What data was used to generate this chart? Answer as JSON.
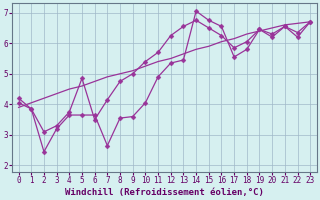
{
  "xlabel": "Windchill (Refroidissement éolien,°C)",
  "bg_color": "#d6f0f0",
  "line_color": "#993399",
  "grid_color": "#a0b8c8",
  "spine_color": "#667788",
  "xlim": [
    -0.5,
    23.5
  ],
  "ylim": [
    1.8,
    7.3
  ],
  "xticks": [
    0,
    1,
    2,
    3,
    4,
    5,
    6,
    7,
    8,
    9,
    10,
    11,
    12,
    13,
    14,
    15,
    16,
    17,
    18,
    19,
    20,
    21,
    22,
    23
  ],
  "yticks": [
    2,
    3,
    4,
    5,
    6,
    7
  ],
  "line1_x": [
    0,
    1,
    2,
    3,
    4,
    5,
    6,
    7,
    8,
    9,
    10,
    11,
    12,
    13,
    14,
    15,
    16,
    17,
    18,
    19,
    20,
    21,
    22,
    23
  ],
  "line1_y": [
    4.2,
    3.85,
    2.45,
    3.2,
    3.65,
    3.65,
    3.65,
    2.65,
    3.55,
    3.6,
    4.05,
    4.9,
    5.35,
    5.45,
    7.05,
    6.75,
    6.55,
    5.55,
    5.8,
    6.45,
    6.3,
    6.55,
    6.2,
    6.7
  ],
  "line2_x": [
    0,
    1,
    2,
    3,
    4,
    5,
    6,
    7,
    8,
    9,
    10,
    11,
    12,
    13,
    14,
    15,
    16,
    17,
    18,
    19,
    20,
    21,
    22,
    23
  ],
  "line2_y": [
    4.05,
    3.85,
    3.1,
    3.3,
    3.75,
    4.85,
    3.5,
    4.15,
    4.75,
    5.0,
    5.4,
    5.7,
    6.25,
    6.55,
    6.75,
    6.5,
    6.25,
    5.85,
    6.05,
    6.45,
    6.2,
    6.55,
    6.35,
    6.7
  ],
  "line3_x": [
    0,
    1,
    2,
    3,
    4,
    5,
    6,
    7,
    8,
    9,
    10,
    11,
    12,
    13,
    14,
    15,
    16,
    17,
    18,
    19,
    20,
    21,
    22,
    23
  ],
  "line3_y": [
    3.9,
    4.05,
    4.2,
    4.35,
    4.5,
    4.6,
    4.75,
    4.9,
    5.0,
    5.1,
    5.25,
    5.4,
    5.5,
    5.65,
    5.8,
    5.9,
    6.05,
    6.15,
    6.3,
    6.4,
    6.5,
    6.6,
    6.65,
    6.7
  ],
  "marker_size": 2.5,
  "line_width": 0.9,
  "xlabel_fontsize": 6.5,
  "tick_fontsize": 5.5,
  "xlabel_color": "#660066",
  "tick_color": "#660066"
}
